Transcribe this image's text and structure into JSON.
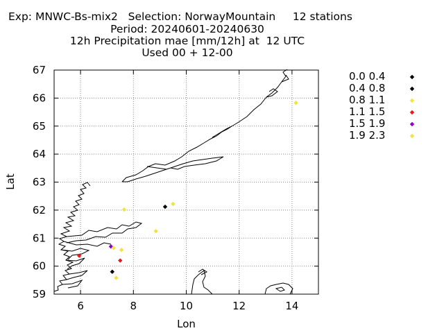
{
  "chart_data": {
    "type": "scatter",
    "title_lines": [
      "Exp: MNWC-Bs-mix2   Selection: NorwayMountain     12 stations",
      "Period: 20240601-20240630",
      "12h Precipitation mae [mm/12h] at  12 UTC",
      "Used 00 + 12-00"
    ],
    "xlabel": "Lon",
    "ylabel": "Lat",
    "xlim": [
      5,
      15
    ],
    "ylim": [
      59,
      67
    ],
    "xticks": [
      6,
      8,
      10,
      12,
      14
    ],
    "yticks": [
      59,
      60,
      61,
      62,
      63,
      64,
      65,
      66,
      67
    ],
    "grid": true,
    "legend_position": "right",
    "legend": [
      {
        "label": "0.0 0.4",
        "color": "#000000"
      },
      {
        "label": "0.4 0.8",
        "color": "#000000"
      },
      {
        "label": "0.8 1.1",
        "color": "#f0e442"
      },
      {
        "label": "1.1 1.5",
        "color": "#e41a1c"
      },
      {
        "label": "1.5 1.9",
        "color": "#8b00c8"
      },
      {
        "label": "1.9 2.3",
        "color": "#f0e442"
      }
    ],
    "points": [
      {
        "lon": 14.15,
        "lat": 65.83,
        "class": 2
      },
      {
        "lon": 9.5,
        "lat": 62.22,
        "class": 2
      },
      {
        "lon": 9.2,
        "lat": 62.12,
        "class": 1
      },
      {
        "lon": 7.65,
        "lat": 62.02,
        "class": 2
      },
      {
        "lon": 8.85,
        "lat": 61.25,
        "class": 2
      },
      {
        "lon": 7.15,
        "lat": 60.7,
        "class": 4
      },
      {
        "lon": 7.25,
        "lat": 60.65,
        "class": 2
      },
      {
        "lon": 7.55,
        "lat": 60.58,
        "class": 2
      },
      {
        "lon": 5.95,
        "lat": 60.37,
        "class": 3
      },
      {
        "lon": 7.5,
        "lat": 60.2,
        "class": 3
      },
      {
        "lon": 7.2,
        "lat": 59.8,
        "class": 0
      },
      {
        "lon": 7.35,
        "lat": 59.58,
        "class": 2
      }
    ]
  }
}
